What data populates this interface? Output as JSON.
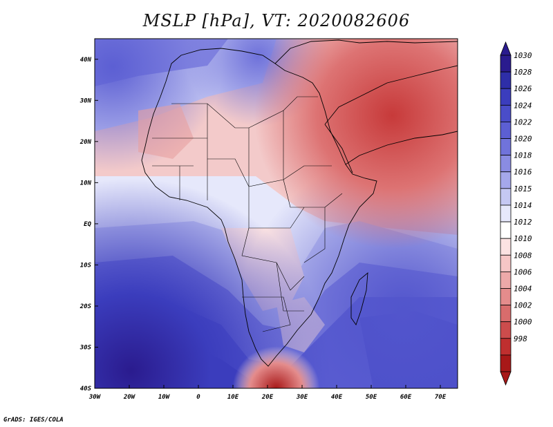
{
  "title": "MSLP [hPa], VT: 2020082606",
  "credit": "GrADS: IGES/COLA",
  "map": {
    "variable": "MSLP",
    "units": "hPa",
    "valid_time": "2020082606",
    "region": "Africa",
    "lon_range": [
      -30,
      75
    ],
    "lat_range": [
      -40,
      45
    ],
    "lon_ticks": [
      "30W",
      "20W",
      "10W",
      "0",
      "10E",
      "20E",
      "30E",
      "40E",
      "50E",
      "60E",
      "70E"
    ],
    "lat_ticks": [
      "40N",
      "30N",
      "20N",
      "10N",
      "EQ",
      "10S",
      "20S",
      "30S",
      "40S"
    ]
  },
  "colorbar": {
    "levels": [
      1030,
      1028,
      1026,
      1024,
      1022,
      1020,
      1018,
      1016,
      1015,
      1014,
      1012,
      1010,
      1008,
      1006,
      1004,
      1002,
      1000,
      998
    ],
    "colors": [
      "#2a1b8e",
      "#2e2ea8",
      "#3b3dbd",
      "#4a4dc9",
      "#5c5fd3",
      "#7073db",
      "#8a8ce3",
      "#a5a8eb",
      "#c5c8f3",
      "#e6e8fb",
      "#ffffff",
      "#fbe2e2",
      "#f6c6c6",
      "#eda9a9",
      "#e48c8c",
      "#d86c6c",
      "#cc4c4c",
      "#bf2f2f",
      "#a81818"
    ]
  }
}
